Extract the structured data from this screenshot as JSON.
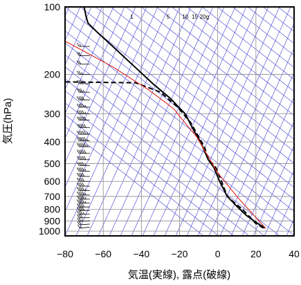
{
  "chart_data": {
    "type": "line",
    "title": "",
    "xlabel": "気温(実線), 露点(破線)",
    "ylabel": "気圧(hPa)",
    "xlim": [
      -80,
      40
    ],
    "ylim": [
      1050,
      100
    ],
    "y_scale": "log",
    "grid": true,
    "x_ticks": [
      -80,
      -60,
      -40,
      -20,
      0,
      20,
      40
    ],
    "y_ticks": [
      100,
      200,
      300,
      400,
      500,
      600,
      700,
      800,
      900,
      1000
    ],
    "mixing_ratio_labels": [
      "1",
      "5",
      "10",
      "15",
      "20g"
    ],
    "mixing_ratio_ticks": [
      {
        "label": "1",
        "t": -45
      },
      {
        "label": "5",
        "t": -26
      },
      {
        "label": "10",
        "t": -17
      },
      {
        "label": "15",
        "t": -12
      },
      {
        "label": "20g",
        "t": -7
      }
    ],
    "series": [
      {
        "style": "solid",
        "color": "#000000",
        "points": [
          [
            25,
            970
          ],
          [
            21,
            925
          ],
          [
            15,
            850
          ],
          [
            10,
            775
          ],
          [
            5,
            700
          ],
          [
            1,
            600
          ],
          [
            -2,
            520
          ],
          [
            -5,
            480
          ],
          [
            -9,
            400
          ],
          [
            -13,
            350
          ],
          [
            -17,
            300
          ],
          [
            -25,
            255
          ],
          [
            -34,
            220
          ],
          [
            -45,
            180
          ],
          [
            -55,
            150
          ],
          [
            -63,
            130
          ],
          [
            -68,
            118
          ],
          [
            -69,
            110
          ],
          [
            -70,
            100
          ]
        ]
      },
      {
        "style": "dashed",
        "color": "#000000",
        "points": [
          [
            24,
            970
          ],
          [
            20,
            925
          ],
          [
            16,
            850
          ],
          [
            13,
            800
          ],
          [
            9,
            750
          ],
          [
            5,
            700
          ],
          [
            2,
            600
          ],
          [
            -1,
            520
          ],
          [
            -5,
            475
          ],
          [
            -7,
            420
          ],
          [
            -10,
            380
          ],
          [
            -14,
            330
          ],
          [
            -21,
            280
          ],
          [
            -30,
            240
          ],
          [
            -43,
            218
          ],
          [
            -80,
            216
          ]
        ]
      },
      {
        "style": "solid",
        "color": "#e0312a",
        "points": [
          [
            25,
            970
          ],
          [
            10,
            700
          ],
          [
            0,
            550
          ],
          [
            -6,
            450
          ],
          [
            -11,
            380
          ],
          [
            -17,
            330
          ],
          [
            -23,
            285
          ],
          [
            -36,
            235
          ],
          [
            -55,
            185
          ],
          [
            -80,
            142
          ]
        ]
      }
    ],
    "wind_profile": [
      {
        "p": 960,
        "dir": 225,
        "speed": 15
      },
      {
        "p": 930,
        "dir": 235,
        "speed": 20
      },
      {
        "p": 900,
        "dir": 245,
        "speed": 25
      },
      {
        "p": 870,
        "dir": 255,
        "speed": 30
      },
      {
        "p": 840,
        "dir": 260,
        "speed": 35
      },
      {
        "p": 810,
        "dir": 265,
        "speed": 40
      },
      {
        "p": 780,
        "dir": 265,
        "speed": 40
      },
      {
        "p": 750,
        "dir": 270,
        "speed": 45
      },
      {
        "p": 720,
        "dir": 270,
        "speed": 45
      },
      {
        "p": 690,
        "dir": 270,
        "speed": 45
      },
      {
        "p": 660,
        "dir": 270,
        "speed": 45
      },
      {
        "p": 630,
        "dir": 270,
        "speed": 40
      },
      {
        "p": 600,
        "dir": 270,
        "speed": 40
      },
      {
        "p": 570,
        "dir": 270,
        "speed": 40
      },
      {
        "p": 540,
        "dir": 270,
        "speed": 45
      },
      {
        "p": 510,
        "dir": 270,
        "speed": 45
      },
      {
        "p": 480,
        "dir": 270,
        "speed": 50
      },
      {
        "p": 450,
        "dir": 270,
        "speed": 50
      },
      {
        "p": 420,
        "dir": 270,
        "speed": 55
      },
      {
        "p": 395,
        "dir": 270,
        "speed": 55
      },
      {
        "p": 370,
        "dir": 270,
        "speed": 55
      },
      {
        "p": 345,
        "dir": 270,
        "speed": 50
      },
      {
        "p": 320,
        "dir": 270,
        "speed": 50
      },
      {
        "p": 300,
        "dir": 270,
        "speed": 45
      },
      {
        "p": 280,
        "dir": 270,
        "speed": 45
      },
      {
        "p": 260,
        "dir": 270,
        "speed": 40
      },
      {
        "p": 240,
        "dir": 270,
        "speed": 35
      },
      {
        "p": 220,
        "dir": 270,
        "speed": 30
      },
      {
        "p": 200,
        "dir": 270,
        "speed": 25
      },
      {
        "p": 180,
        "dir": 270,
        "speed": 20
      },
      {
        "p": 165,
        "dir": 270,
        "speed": 20
      },
      {
        "p": 150,
        "dir": 270,
        "speed": 15
      }
    ]
  }
}
